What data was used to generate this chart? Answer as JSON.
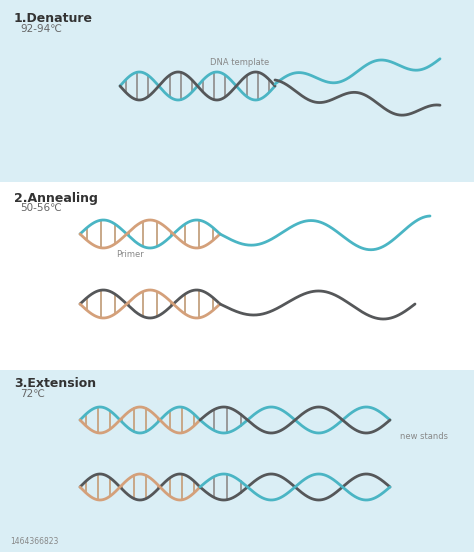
{
  "bg_light": "#daeef5",
  "bg_white": "#f0f9fc",
  "teal": "#4ab5c4",
  "dark_gray": "#555759",
  "salmon": "#d4a07a",
  "rung_light": "#cccccc",
  "rung_salmon": "#c8a080",
  "title_fontsize": 9,
  "temp_fontsize": 7.5,
  "annot_fontsize": 6,
  "sections": [
    {
      "title": "1.Denature",
      "temp": "92-94℃"
    },
    {
      "title": "2.Annealing",
      "temp": "50-56℃"
    },
    {
      "title": "3.Extension",
      "temp": "72℃"
    }
  ],
  "dna_template": "DNA template",
  "primer": "Primer",
  "new_stands": "new stands",
  "watermark_id": "1464366823"
}
